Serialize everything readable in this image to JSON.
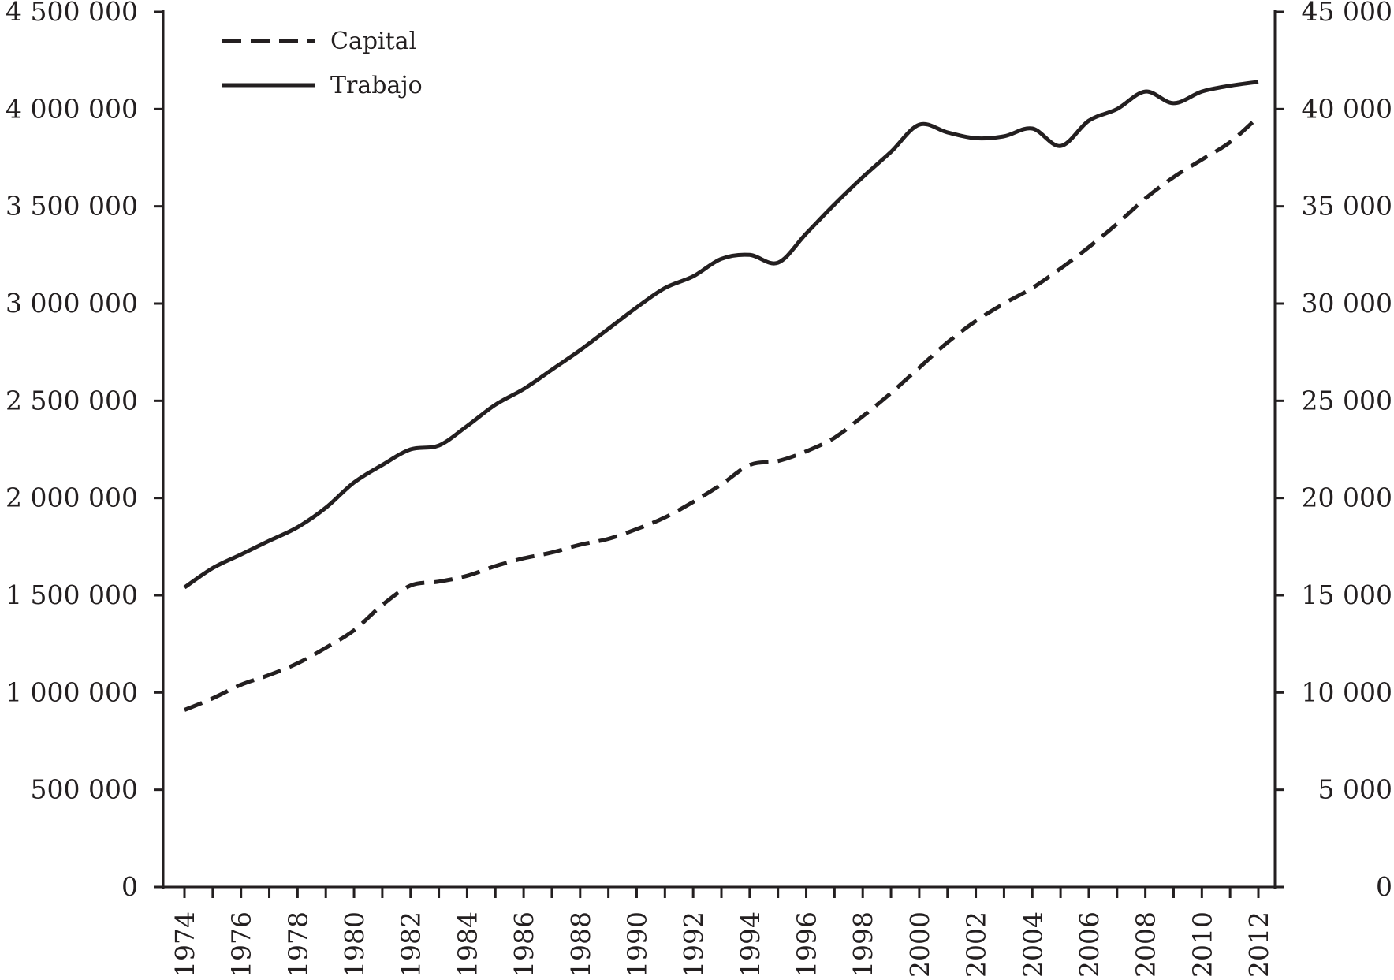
{
  "chart_data": {
    "type": "line",
    "title": "",
    "xlabel": "",
    "ylabel_left": "",
    "ylabel_right": "",
    "x": [
      1974,
      1975,
      1976,
      1977,
      1978,
      1979,
      1980,
      1981,
      1982,
      1983,
      1984,
      1985,
      1986,
      1987,
      1988,
      1989,
      1990,
      1991,
      1992,
      1993,
      1994,
      1995,
      1996,
      1997,
      1998,
      1999,
      2000,
      2001,
      2002,
      2003,
      2004,
      2005,
      2006,
      2007,
      2008,
      2009,
      2010,
      2011,
      2012
    ],
    "x_tick_labels": [
      "1974",
      "1976",
      "1978",
      "1980",
      "1982",
      "1984",
      "1986",
      "1988",
      "1990",
      "1992",
      "1994",
      "1996",
      "1998",
      "2000",
      "2002",
      "2004",
      "2006",
      "2008",
      "2010",
      "2012"
    ],
    "ylim_left": [
      0,
      4500000
    ],
    "ylim_right": [
      0,
      45000
    ],
    "y_left_tick_labels": [
      "0",
      "500 000",
      "1 000 000",
      "1 500 000",
      "2 000 000",
      "2 500 000",
      "3 000 000",
      "3 500 000",
      "4 000 000",
      "4 500 000"
    ],
    "y_right_tick_labels": [
      "0",
      "5 000",
      "10 000",
      "15 000",
      "20 000",
      "25 000",
      "30 000",
      "35 000",
      "40 000",
      "45 000"
    ],
    "legend_position": "top-left",
    "grid": false,
    "series": [
      {
        "name": "Capital",
        "axis": "left",
        "style": "dashed",
        "color": "#231f20",
        "values": [
          910000,
          970000,
          1040000,
          1090000,
          1150000,
          1230000,
          1320000,
          1450000,
          1550000,
          1570000,
          1600000,
          1650000,
          1690000,
          1720000,
          1760000,
          1790000,
          1840000,
          1900000,
          1980000,
          2070000,
          2170000,
          2190000,
          2240000,
          2310000,
          2420000,
          2540000,
          2670000,
          2800000,
          2910000,
          3000000,
          3080000,
          3180000,
          3290000,
          3410000,
          3540000,
          3650000,
          3740000,
          3830000,
          3960000
        ]
      },
      {
        "name": "Trabajo",
        "axis": "right",
        "style": "solid",
        "color": "#231f20",
        "values": [
          15400,
          16400,
          17100,
          17800,
          18500,
          19500,
          20800,
          21700,
          22500,
          22700,
          23700,
          24800,
          25600,
          26600,
          27600,
          28700,
          29800,
          30800,
          31400,
          32300,
          32500,
          32100,
          33600,
          35100,
          36500,
          37800,
          39200,
          38800,
          38500,
          38600,
          39000,
          38100,
          39400,
          40000,
          40900,
          40300,
          40900,
          41200,
          41400
        ]
      }
    ]
  }
}
